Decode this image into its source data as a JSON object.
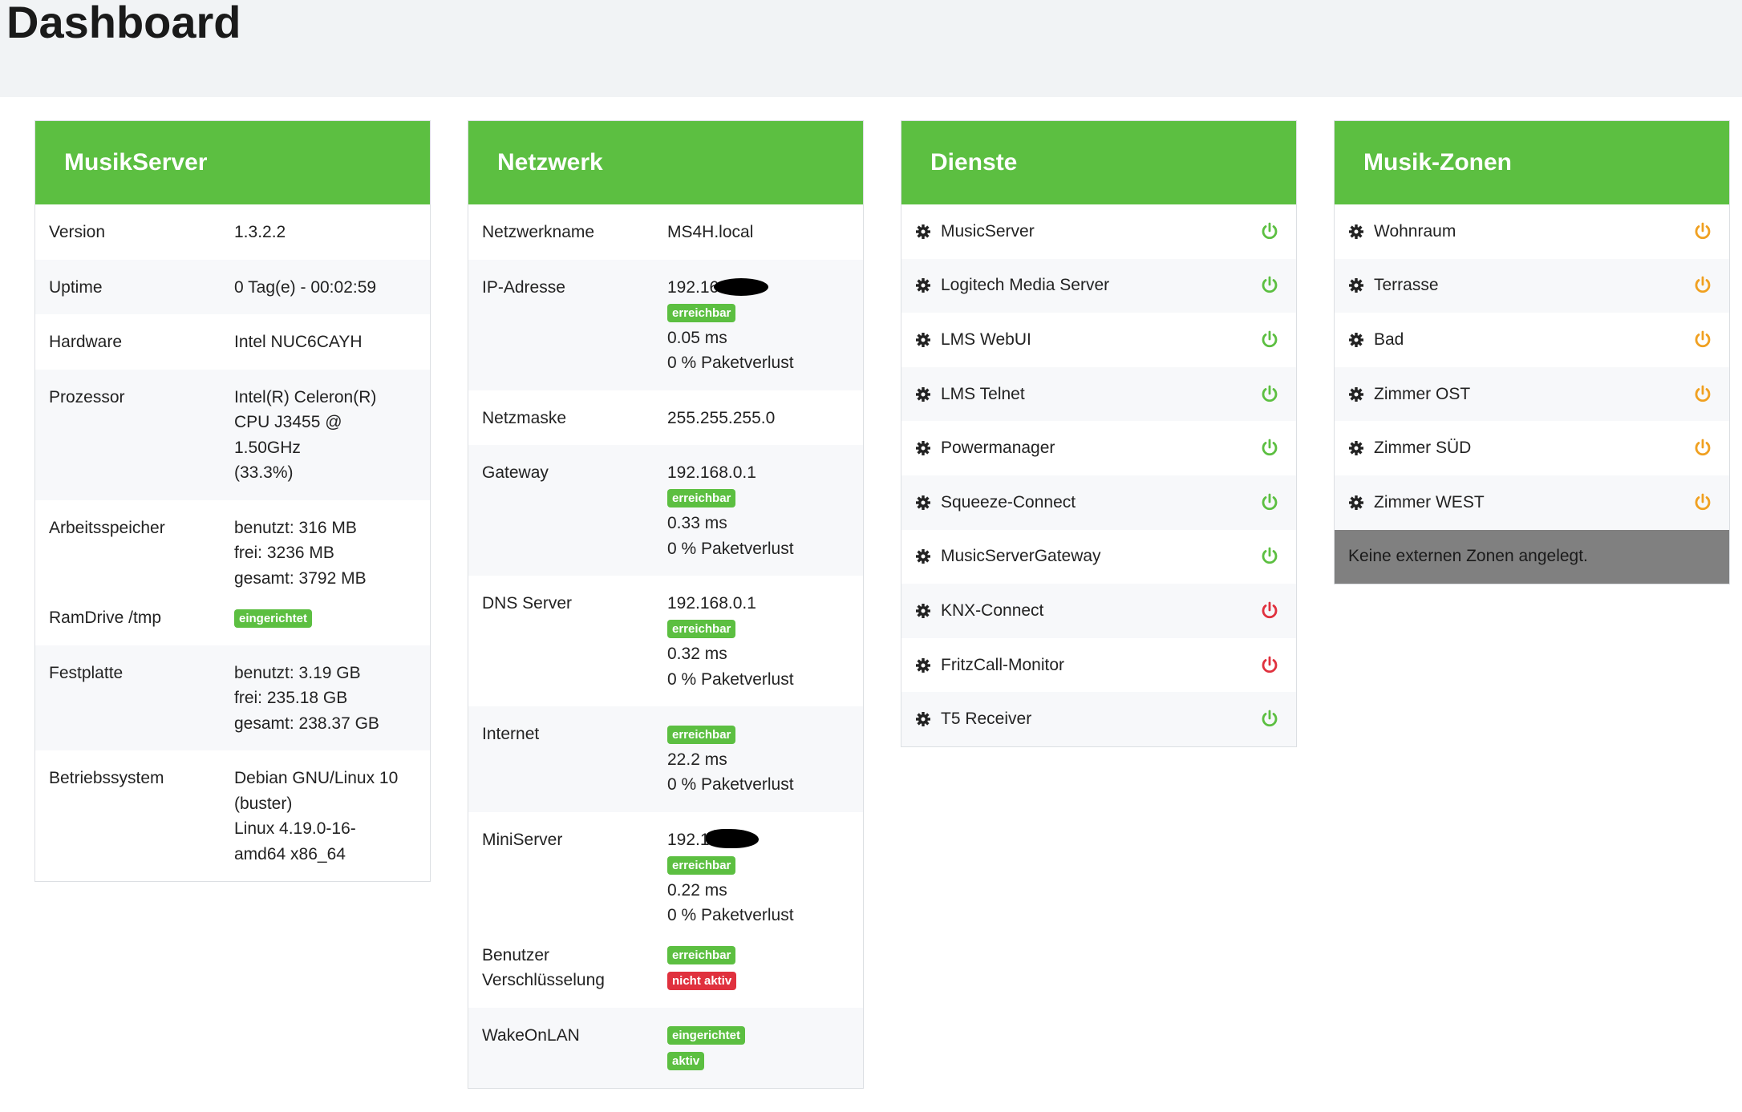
{
  "page": {
    "title": "Dashboard"
  },
  "colors": {
    "card_header": "#5cbf41",
    "ok": "#5cbf41",
    "error": "#e0313e",
    "warning": "#f0a020",
    "empty_zone_bg": "#808080"
  },
  "musikserver": {
    "title": "MusikServer",
    "rows": [
      {
        "key": "Version",
        "lines": [
          "1.3.2.2"
        ]
      },
      {
        "key": "Uptime",
        "lines": [
          "0 Tag(e) - 00:02:59"
        ]
      },
      {
        "key": "Hardware",
        "lines": [
          "Intel NUC6CAYH"
        ]
      },
      {
        "key": "Prozessor",
        "lines": [
          "Intel(R) Celeron(R)",
          "CPU J3455 @",
          "1.50GHz",
          "(33.3%)"
        ]
      },
      {
        "key": "Arbeitsspeicher",
        "lines": [
          "benutzt: 316 MB",
          "frei: 3236 MB",
          "gesamt: 3792 MB"
        ]
      },
      {
        "key": "RamDrive /tmp",
        "badge": "eingerichtet"
      },
      {
        "key": "Festplatte",
        "lines": [
          "benutzt: 3.19 GB",
          "frei: 235.18 GB",
          "gesamt: 238.37 GB"
        ]
      },
      {
        "key": "Betriebssystem",
        "lines": [
          "Debian GNU/Linux 10",
          "(buster)",
          "Linux 4.19.0-16-",
          "amd64 x86_64"
        ]
      }
    ]
  },
  "netzwerk": {
    "title": "Netzwerk",
    "rows": [
      {
        "key": "Netzwerkname",
        "value": "MS4H.local"
      },
      {
        "key": "IP-Adresse",
        "value": "192.168.",
        "badge": "erreichbar",
        "latency": "0.05 ms",
        "loss": "0 % Paketverlust"
      },
      {
        "key": "Netzmaske",
        "value": "255.255.255.0"
      },
      {
        "key": "Gateway",
        "value": "192.168.0.1",
        "badge": "erreichbar",
        "latency": "0.33 ms",
        "loss": "0 % Paketverlust"
      },
      {
        "key": "DNS Server",
        "value": "192.168.0.1",
        "badge": "erreichbar",
        "latency": "0.32 ms",
        "loss": "0 % Paketverlust"
      },
      {
        "key": "Internet",
        "badge": "erreichbar",
        "latency": "22.2 ms",
        "loss": "0 % Paketverlust"
      },
      {
        "key": "MiniServer",
        "value": "192.16",
        "badge": "erreichbar",
        "latency": "0.22 ms",
        "loss": "0 % Paketverlust"
      },
      {
        "key1": "Benutzer",
        "key2": "Verschlüsselung",
        "badge1": "erreichbar",
        "badge2": "nicht aktiv"
      },
      {
        "key": "WakeOnLAN",
        "badge1": "eingerichtet",
        "badge2": "aktiv"
      }
    ]
  },
  "dienste": {
    "title": "Dienste",
    "items": [
      {
        "name": "MusicServer",
        "status": "ok"
      },
      {
        "name": "Logitech Media Server",
        "status": "ok"
      },
      {
        "name": "LMS WebUI",
        "status": "ok"
      },
      {
        "name": "LMS Telnet",
        "status": "ok"
      },
      {
        "name": "Powermanager",
        "status": "ok"
      },
      {
        "name": "Squeeze-Connect",
        "status": "ok"
      },
      {
        "name": "MusicServerGateway",
        "status": "ok"
      },
      {
        "name": "KNX-Connect",
        "status": "error"
      },
      {
        "name": "FritzCall-Monitor",
        "status": "error"
      },
      {
        "name": "T5 Receiver",
        "status": "ok"
      }
    ]
  },
  "zonen": {
    "title": "Musik-Zonen",
    "items": [
      {
        "name": "Wohnraum",
        "status": "warning"
      },
      {
        "name": "Terrasse",
        "status": "warning"
      },
      {
        "name": "Bad",
        "status": "warning"
      },
      {
        "name": "Zimmer OST",
        "status": "warning"
      },
      {
        "name": "Zimmer SÜD",
        "status": "warning"
      },
      {
        "name": "Zimmer WEST",
        "status": "warning"
      }
    ],
    "empty_text": "Keine externen Zonen angelegt."
  }
}
